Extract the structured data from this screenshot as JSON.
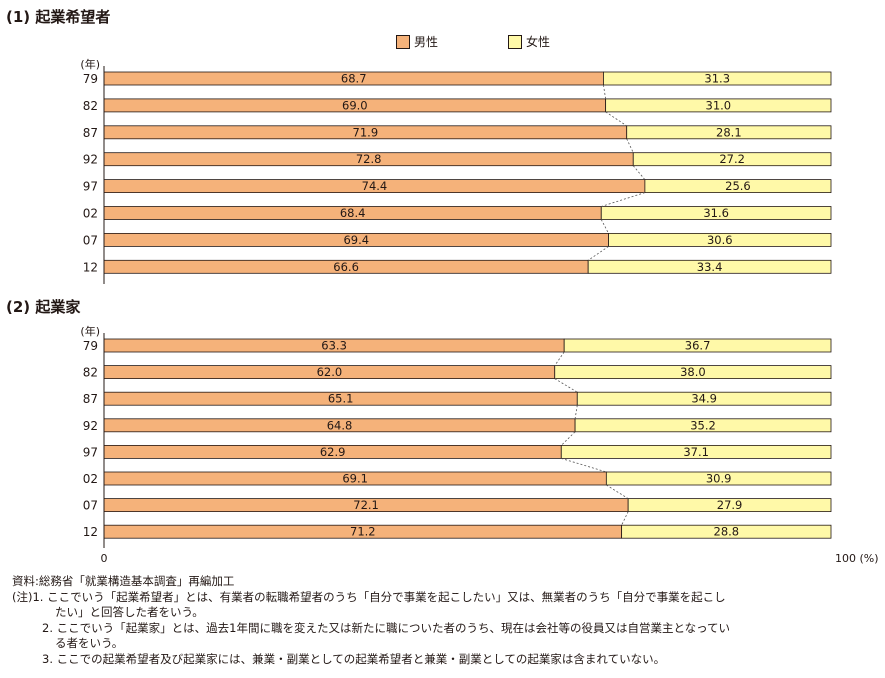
{
  "section1_title": "(1) 起業希望者",
  "section2_title": "(2) 起業家",
  "legend": {
    "male": "男性",
    "female": "女性"
  },
  "colors": {
    "male": "#F5B27A",
    "female": "#FFF9A8",
    "stroke": "#231815"
  },
  "axis": {
    "unit_label": "(年)",
    "x_min_label": "0",
    "x_max_label": "100 (%)"
  },
  "chart_data": [
    {
      "type": "bar",
      "stacked": true,
      "orientation": "horizontal",
      "title": "(1) 起業希望者",
      "categories": [
        "79",
        "82",
        "87",
        "92",
        "97",
        "02",
        "07",
        "12"
      ],
      "series": [
        {
          "name": "男性",
          "values": [
            68.7,
            69.0,
            71.9,
            72.8,
            74.4,
            68.4,
            69.4,
            66.6
          ]
        },
        {
          "name": "女性",
          "values": [
            31.3,
            31.0,
            28.1,
            27.2,
            25.6,
            31.6,
            30.6,
            33.4
          ]
        }
      ],
      "xlim": [
        0,
        100
      ]
    },
    {
      "type": "bar",
      "stacked": true,
      "orientation": "horizontal",
      "title": "(2) 起業家",
      "categories": [
        "79",
        "82",
        "87",
        "92",
        "97",
        "02",
        "07",
        "12"
      ],
      "series": [
        {
          "name": "男性",
          "values": [
            63.3,
            62.0,
            65.1,
            64.8,
            62.9,
            69.1,
            72.1,
            71.2
          ]
        },
        {
          "name": "女性",
          "values": [
            36.7,
            38.0,
            34.9,
            35.2,
            37.1,
            30.9,
            27.9,
            28.8
          ]
        }
      ],
      "xlim": [
        0,
        100
      ]
    }
  ],
  "notes": {
    "source": "資料:総務省「就業構造基本調査」再編加工",
    "n1a": "(注)1. ここでいう「起業希望者」とは、有業者の転職希望者のうち「自分で事業を起こしたい」又は、無業者のうち「自分で事業を起こし",
    "n1b": "たい」と回答した者をいう。",
    "n2a": "2. ここでいう「起業家」とは、過去1年間に職を変えた又は新たに職についた者のうち、現在は会社等の役員又は自営業主となってい",
    "n2b": "る者をいう。",
    "n3": "3. ここでの起業希望者及び起業家には、兼業・副業としての起業希望者と兼業・副業としての起業家は含まれていない。"
  }
}
